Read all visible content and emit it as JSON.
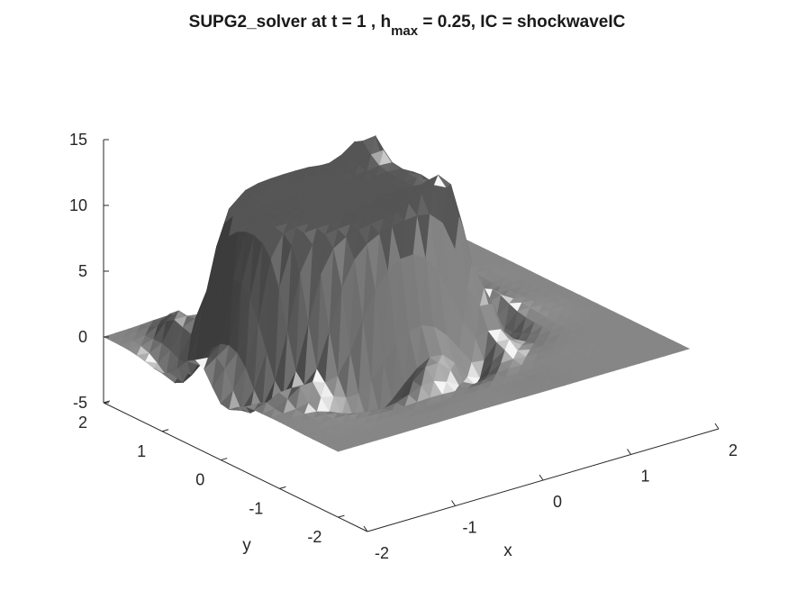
{
  "chart_data": {
    "type": "surface",
    "title_main": "SUPG2_solver at t = 1 , h",
    "title_sub": "max",
    "title_tail": " = 0.25, IC = shockwaveIC",
    "xlabel": "x",
    "ylabel": "y",
    "zlabel": "",
    "xlim": [
      -2,
      2
    ],
    "ylim": [
      -2.5,
      2
    ],
    "zlim": [
      -5,
      15
    ],
    "x_ticks": [
      "-2",
      "-1",
      "0",
      "1",
      "2"
    ],
    "y_ticks": [
      "-2",
      "-1",
      "0",
      "1",
      "2"
    ],
    "z_ticks": [
      "-5",
      "0",
      "5",
      "10",
      "15"
    ],
    "grid": false,
    "colormap": "gray",
    "surface_color": "#5a5a5a",
    "highlight_color": "#f2f2f2",
    "plateau_height": 11,
    "plateau_center": [
      -0.4,
      0.4
    ],
    "plateau_radius": 1.2,
    "peak_height": 14,
    "ring_amplitude": 1.5
  }
}
